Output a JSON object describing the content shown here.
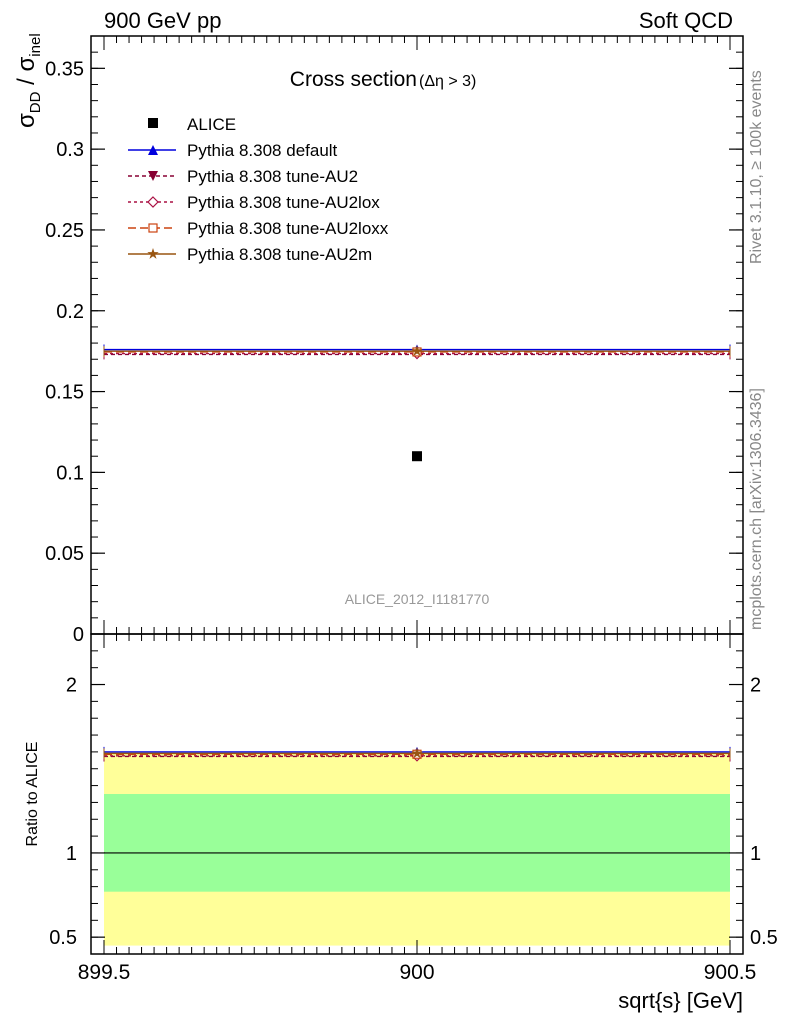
{
  "header": {
    "left": "900 GeV pp",
    "right": "Soft QCD"
  },
  "side_labels": {
    "rivet": "Rivet 3.1.10, ≥ 100k events",
    "mcplots": "mcplots.cern.ch [arXiv:1306.3436]"
  },
  "chart_data": [
    {
      "type": "line",
      "title_main": "Cross section",
      "title_sub": "(Δη > 3)",
      "watermark": "ALICE_2012_I1181770",
      "ylabel_main": "σ",
      "ylabel_sub1": "DD",
      "ylabel_slash": " / σ",
      "ylabel_sub2": "inel",
      "xlim": [
        899.5,
        900.5
      ],
      "ylim": [
        0,
        0.37
      ],
      "yticks": [
        0,
        0.05,
        0.1,
        0.15,
        0.2,
        0.25,
        0.3,
        0.35
      ],
      "ytick_labels": [
        "0",
        "0.05",
        "0.1",
        "0.15",
        "0.2",
        "0.25",
        "0.3",
        "0.35"
      ],
      "legend_position": "top-left",
      "data": {
        "name": "ALICE",
        "x": 900,
        "y": 0.11,
        "color": "#000000"
      },
      "series": [
        {
          "name": "Pythia 8.308 default",
          "y": 0.176,
          "color": "#0000dd",
          "dash": "",
          "marker": "triangle-up"
        },
        {
          "name": "Pythia 8.308 tune-AU2",
          "y": 0.173,
          "color": "#880033",
          "dash": "4,3",
          "marker": "triangle-down"
        },
        {
          "name": "Pythia 8.308 tune-AU2lox",
          "y": 0.1735,
          "color": "#aa1144",
          "dash": "3,3",
          "marker": "diamond"
        },
        {
          "name": "Pythia 8.308 tune-AU2loxx",
          "y": 0.1745,
          "color": "#cc4411",
          "dash": "8,4",
          "marker": "square"
        },
        {
          "name": "Pythia 8.308 tune-AU2m",
          "y": 0.175,
          "color": "#995511",
          "dash": "",
          "marker": "star"
        }
      ]
    },
    {
      "type": "line",
      "ylabel": "Ratio to ALICE",
      "xlabel": "sqrt{s} [GeV]",
      "xlim": [
        899.5,
        900.5
      ],
      "ylim": [
        0.4,
        2.3
      ],
      "xticks": [
        899.5,
        900,
        900.5
      ],
      "xtick_labels": [
        "899.5",
        "900",
        "900.5"
      ],
      "yticks": [
        0.5,
        1,
        2
      ],
      "ytick_labels": [
        "0.5",
        "1",
        "2"
      ],
      "bands": [
        {
          "name": "2-sigma",
          "low": 0.45,
          "high": 1.6,
          "color": "#ffff99"
        },
        {
          "name": "1-sigma",
          "low": 0.77,
          "high": 1.35,
          "color": "#99ff99"
        }
      ],
      "series": [
        {
          "name": "Pythia 8.308 default",
          "y": 1.6,
          "color": "#0000dd",
          "dash": "",
          "marker": "triangle-up"
        },
        {
          "name": "Pythia 8.308 tune-AU2",
          "y": 1.573,
          "color": "#880033",
          "dash": "4,3",
          "marker": "triangle-down"
        },
        {
          "name": "Pythia 8.308 tune-AU2lox",
          "y": 1.577,
          "color": "#aa1144",
          "dash": "3,3",
          "marker": "diamond"
        },
        {
          "name": "Pythia 8.308 tune-AU2loxx",
          "y": 1.586,
          "color": "#cc4411",
          "dash": "8,4",
          "marker": "square"
        },
        {
          "name": "Pythia 8.308 tune-AU2m",
          "y": 1.591,
          "color": "#995511",
          "dash": "",
          "marker": "star"
        }
      ]
    }
  ]
}
